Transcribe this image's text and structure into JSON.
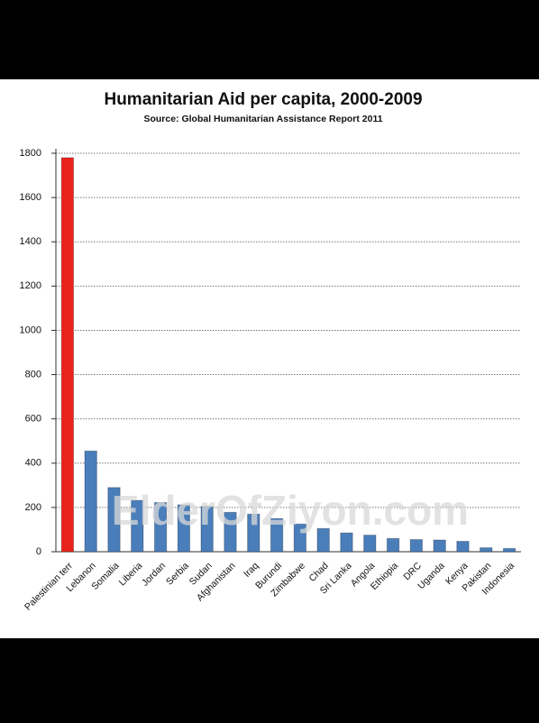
{
  "chart_data": {
    "type": "bar",
    "title": "Humanitarian Aid per capita, 2000-2009",
    "subtitle": "Source:  Global Humanitarian Assistance Report 2011",
    "watermark": "ElderOfZiyon.com",
    "categories": [
      "Palestinian terr",
      "Lebanon",
      "Somalia",
      "Liberia",
      "Jordan",
      "Serbia",
      "Sudan",
      "Afghanistan",
      "Iraq",
      "Burundi",
      "Zimbabwe",
      "Chad",
      "Sri Lanka",
      "Angola",
      "Ethiopia",
      "DRC",
      "Uganda",
      "Kenya",
      "Pakistan",
      "Indonesia"
    ],
    "values": [
      1780,
      455,
      290,
      232,
      222,
      212,
      205,
      178,
      170,
      150,
      125,
      105,
      85,
      75,
      60,
      55,
      53,
      47,
      18,
      15
    ],
    "colors": [
      "#e8231a",
      "#4a7ebb",
      "#4a7ebb",
      "#4a7ebb",
      "#4a7ebb",
      "#4a7ebb",
      "#4a7ebb",
      "#4a7ebb",
      "#4a7ebb",
      "#4a7ebb",
      "#4a7ebb",
      "#4a7ebb",
      "#4a7ebb",
      "#4a7ebb",
      "#4a7ebb",
      "#4a7ebb",
      "#4a7ebb",
      "#4a7ebb",
      "#4a7ebb",
      "#4a7ebb"
    ],
    "ylim": [
      0,
      1800
    ],
    "yticks": [
      0,
      200,
      400,
      600,
      800,
      1000,
      1200,
      1400,
      1600,
      1800
    ],
    "grid": true
  }
}
